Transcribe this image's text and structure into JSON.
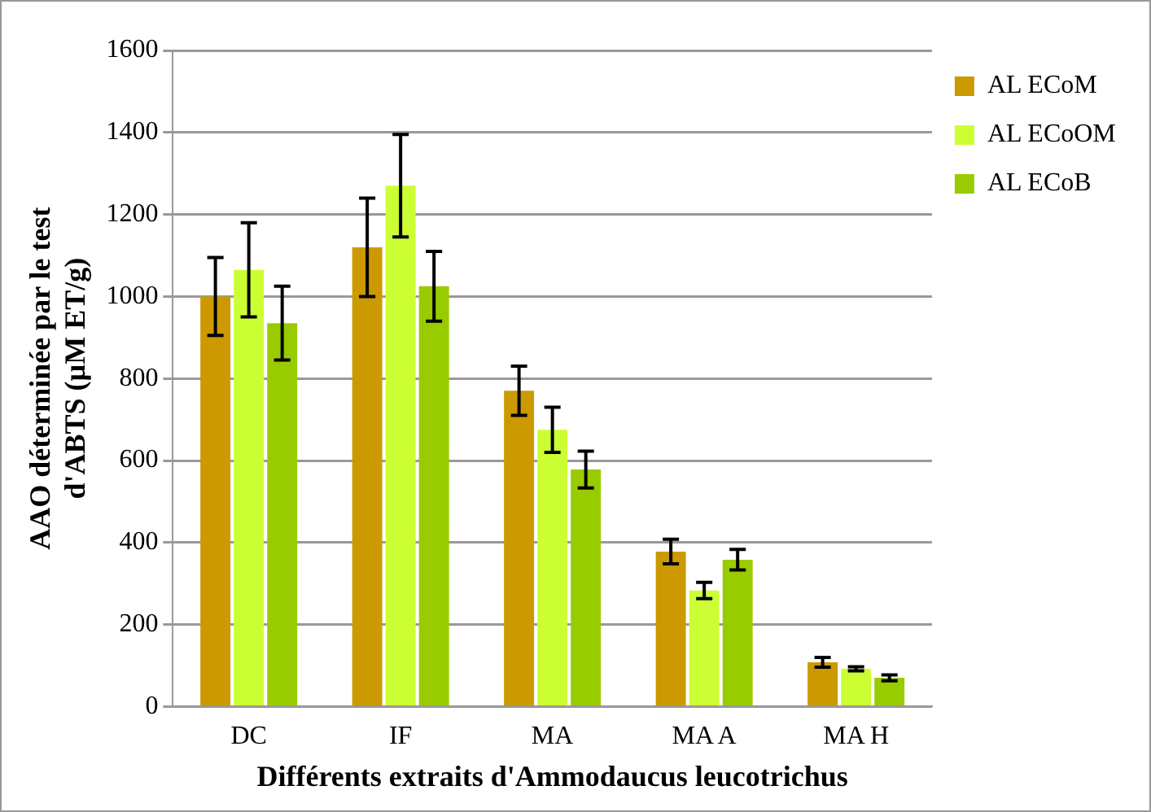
{
  "chart_data": {
    "type": "bar",
    "xlabel": "Différents extraits d'Ammodaucus leucotrichus",
    "ylabel": "AAO déterminée par le test\nd'ABTS (µM ET/g)",
    "categories": [
      "DC",
      "IF",
      "MA",
      "MA A",
      "MA H"
    ],
    "series": [
      {
        "name": "AL ECoM",
        "color": "#cc9900",
        "values": [
          1000,
          1120,
          770,
          378,
          108
        ],
        "errors": [
          95,
          120,
          60,
          30,
          12
        ]
      },
      {
        "name": "AL ECoOM",
        "color": "#ccff33",
        "values": [
          1065,
          1270,
          675,
          283,
          92
        ],
        "errors": [
          115,
          125,
          55,
          20,
          5
        ]
      },
      {
        "name": "AL ECoB",
        "color": "#99cc00",
        "values": [
          935,
          1025,
          578,
          358,
          70
        ],
        "errors": [
          90,
          85,
          45,
          25,
          7
        ]
      }
    ],
    "ylim": [
      0,
      1600
    ],
    "yticks": [
      0,
      200,
      400,
      600,
      800,
      1000,
      1200,
      1400,
      1600
    ],
    "grid": "y",
    "legend": "top right"
  }
}
